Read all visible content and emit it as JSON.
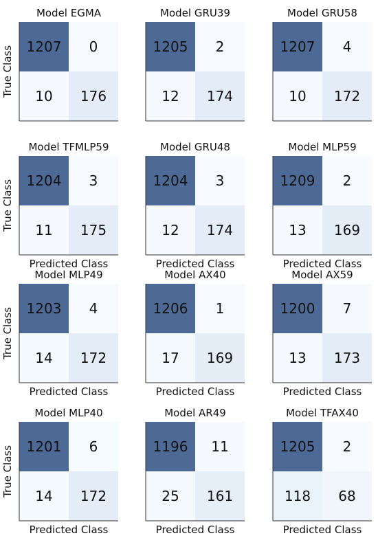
{
  "chart_data": {
    "type": "heatmap",
    "ylabel": "True Class",
    "xlabel": "Predicted Class",
    "colors": {
      "high": "#4d6a96",
      "low": "#f7fbff",
      "mid": "#e4edf7"
    },
    "matrices": [
      {
        "title": "Model EGMA",
        "values": [
          [
            1207,
            0
          ],
          [
            10,
            176
          ]
        ]
      },
      {
        "title": "Model GRU39",
        "values": [
          [
            1205,
            2
          ],
          [
            12,
            174
          ]
        ]
      },
      {
        "title": "Model GRU58",
        "values": [
          [
            1207,
            4
          ],
          [
            10,
            172
          ]
        ]
      },
      {
        "title": "Model TFMLP59",
        "values": [
          [
            1204,
            3
          ],
          [
            11,
            175
          ]
        ]
      },
      {
        "title": "Model GRU48",
        "values": [
          [
            1204,
            3
          ],
          [
            12,
            174
          ]
        ]
      },
      {
        "title": "Model MLP59",
        "values": [
          [
            1209,
            2
          ],
          [
            13,
            169
          ]
        ]
      },
      {
        "title": "Model MLP49",
        "values": [
          [
            1203,
            4
          ],
          [
            14,
            172
          ]
        ]
      },
      {
        "title": "Model AX40",
        "values": [
          [
            1206,
            1
          ],
          [
            17,
            169
          ]
        ]
      },
      {
        "title": "Model AX59",
        "values": [
          [
            1200,
            7
          ],
          [
            13,
            173
          ]
        ]
      },
      {
        "title": "Model MLP40",
        "values": [
          [
            1201,
            6
          ],
          [
            14,
            172
          ]
        ]
      },
      {
        "title": "Model AR49",
        "values": [
          [
            1196,
            11
          ],
          [
            25,
            161
          ]
        ]
      },
      {
        "title": "Model TFAX40",
        "values": [
          [
            1205,
            2
          ],
          [
            118,
            68
          ]
        ]
      }
    ]
  }
}
